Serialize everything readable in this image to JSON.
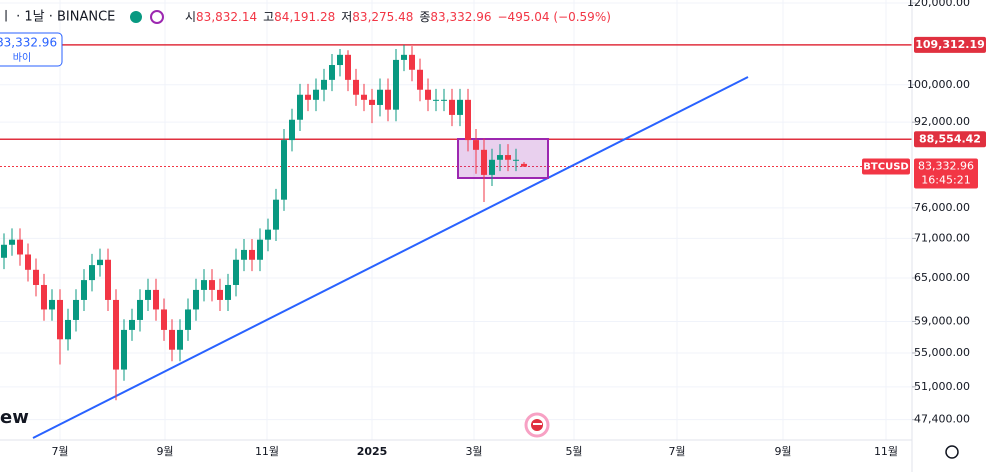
{
  "header": {
    "symbol": "ㅣ · 1날 · BINANCE",
    "ohlc": [
      {
        "key": "시",
        "value": "83,832.14"
      },
      {
        "key": "고",
        "value": "84,191.28"
      },
      {
        "key": "저",
        "value": "83,275.48"
      },
      {
        "key": "종",
        "value": "83,332.96"
      }
    ],
    "change": "−495.04 (−0.59%)"
  },
  "left_badge": {
    "price": "83,332.96",
    "side": "바이"
  },
  "watermark": "ew",
  "chart_data": {
    "type": "candlestick",
    "log_scale": true,
    "grid": true,
    "up_color": "#089981",
    "down_color": "#f23645",
    "open": [
      68000,
      70000,
      70800,
      68500,
      66200,
      64000,
      60600,
      61900,
      56700,
      59200,
      61900,
      64700,
      66900,
      67700,
      61900,
      53000,
      57900,
      59200,
      61900,
      63300,
      60600,
      57900,
      55400,
      57900,
      60600,
      63300,
      64700,
      63300,
      61900,
      64000,
      67700,
      69200,
      67700,
      70800,
      72400,
      77400,
      88400,
      92500,
      97800,
      96700,
      98900,
      101100,
      104500,
      106900,
      101100,
      97800,
      96700,
      95600,
      98900,
      94600,
      105700,
      106900,
      103400,
      98900,
      96700,
      96700,
      96700,
      93500,
      96700,
      88400,
      86500,
      81800,
      84600,
      85500,
      84600,
      83832.14
    ],
    "high": [
      71800,
      72600,
      72600,
      70200,
      67900,
      65600,
      63400,
      63400,
      60700,
      63400,
      66300,
      68600,
      69400,
      69400,
      63400,
      59300,
      60700,
      63400,
      64900,
      64900,
      62100,
      59300,
      59300,
      62100,
      64900,
      66300,
      66300,
      64900,
      65600,
      69400,
      70900,
      70900,
      72600,
      74200,
      79300,
      90600,
      94800,
      100200,
      100200,
      101400,
      103600,
      107100,
      108300,
      108000,
      103600,
      100200,
      99100,
      101400,
      101400,
      108300,
      109300,
      109000,
      106000,
      101400,
      99100,
      99100,
      99100,
      99100,
      99100,
      90600,
      88700,
      86700,
      87600,
      87600,
      86700,
      84191.28
    ],
    "low": [
      66300,
      68300,
      66800,
      64500,
      62400,
      59100,
      59100,
      53600,
      55300,
      57700,
      60400,
      63100,
      65200,
      60400,
      49500,
      51700,
      56500,
      57700,
      60400,
      59100,
      56500,
      54000,
      54000,
      56500,
      59100,
      61700,
      61700,
      60400,
      60400,
      62400,
      66000,
      66000,
      66000,
      69000,
      70600,
      75500,
      86200,
      90200,
      94300,
      94300,
      96400,
      98600,
      101900,
      98600,
      95400,
      94300,
      91800,
      93200,
      92200,
      92200,
      103100,
      100800,
      96400,
      94300,
      94300,
      94300,
      91200,
      91200,
      86200,
      82000,
      77000,
      79800,
      82500,
      82500,
      82500,
      83275.48
    ],
    "close": [
      70000,
      70800,
      68500,
      66200,
      64000,
      60600,
      61900,
      56700,
      59200,
      61900,
      64700,
      66900,
      67700,
      61900,
      53000,
      57900,
      59200,
      61900,
      63300,
      60600,
      57900,
      55400,
      57900,
      60600,
      63300,
      64700,
      63300,
      61900,
      64000,
      67700,
      69200,
      67700,
      70800,
      72400,
      77400,
      88400,
      92500,
      97800,
      96700,
      98900,
      101100,
      104500,
      106900,
      101100,
      97800,
      96700,
      95600,
      98900,
      94600,
      105700,
      106900,
      103400,
      98900,
      96700,
      96700,
      96700,
      93500,
      96700,
      88400,
      86500,
      81800,
      84600,
      85500,
      84600,
      84600,
      83332.96
    ],
    "ylim": [
      45300,
      120800
    ],
    "yticks": [
      {
        "value": 120000,
        "label": "120,000.00"
      },
      {
        "value": 100000,
        "label": "100,000.00"
      },
      {
        "value": 92000,
        "label": "92,000.00"
      },
      {
        "value": 76000,
        "label": "76,000.00"
      },
      {
        "value": 71000,
        "label": "71,000.00"
      },
      {
        "value": 65000,
        "label": "65,000.00"
      },
      {
        "value": 59000,
        "label": "59,000.00"
      },
      {
        "value": 55000,
        "label": "55,000.00"
      },
      {
        "value": 51000,
        "label": "51,000.00"
      },
      {
        "value": 47400,
        "label": "47,400.00"
      }
    ],
    "xticks": [
      "7월",
      "9월",
      "11월",
      "2025",
      "3월",
      "5월",
      "7월",
      "9월",
      "11월"
    ],
    "hlines": [
      {
        "value": 109312.19,
        "label": "109,312.19",
        "color": "#e0303f"
      },
      {
        "value": 88554.42,
        "label": "88,554.42",
        "color": "#e0303f"
      }
    ],
    "last_price": {
      "value": 83332.96,
      "label": "83,332.96",
      "symbol": "BTCUSD",
      "countdown": "16:45:21",
      "color": "#f23645"
    }
  }
}
